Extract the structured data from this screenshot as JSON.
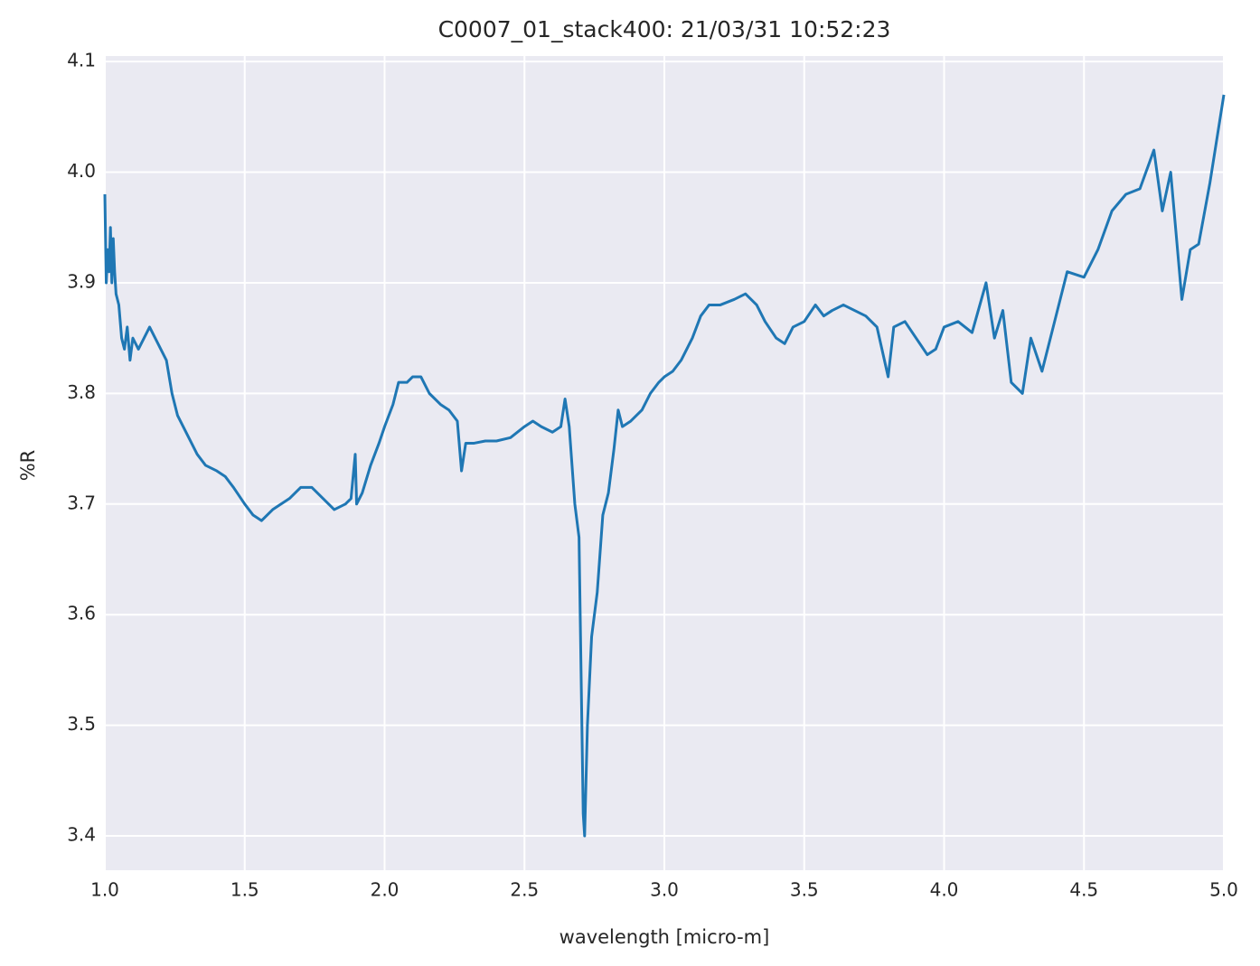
{
  "chart_data": {
    "type": "line",
    "title": "C0007_01_stack400:  21/03/31 10:52:23",
    "x_label": "wavelength [micro-m]",
    "y_label": "%R",
    "xlim": [
      1,
      5
    ],
    "ylim": [
      3.369,
      4.105
    ],
    "xticks": [
      {
        "value": 1,
        "label": "1.0"
      },
      1.5,
      {
        "value": 2,
        "label": "2.0"
      },
      2.5,
      {
        "value": 3,
        "label": "3.0"
      },
      3.5,
      {
        "value": 4,
        "label": "4.0"
      },
      4.5,
      {
        "value": 5,
        "label": "5.0"
      }
    ],
    "yticks": [
      3.4,
      3.5,
      3.6,
      3.7,
      3.8,
      3.9,
      {
        "value": 4,
        "label": "4.0"
      },
      4.1
    ],
    "grid": true,
    "background": "#eaeaf2",
    "x": [
      1.0,
      1.005,
      1.01,
      1.015,
      1.02,
      1.025,
      1.03,
      1.035,
      1.04,
      1.05,
      1.06,
      1.07,
      1.08,
      1.09,
      1.1,
      1.12,
      1.14,
      1.16,
      1.18,
      1.2,
      1.22,
      1.24,
      1.26,
      1.28,
      1.3,
      1.33,
      1.36,
      1.4,
      1.43,
      1.46,
      1.5,
      1.53,
      1.56,
      1.6,
      1.63,
      1.66,
      1.7,
      1.74,
      1.78,
      1.82,
      1.86,
      1.88,
      1.895,
      1.9,
      1.92,
      1.95,
      1.98,
      2.0,
      2.03,
      2.05,
      2.08,
      2.1,
      2.13,
      2.16,
      2.2,
      2.23,
      2.26,
      2.275,
      2.29,
      2.32,
      2.36,
      2.4,
      2.45,
      2.5,
      2.53,
      2.56,
      2.6,
      2.63,
      2.645,
      2.66,
      2.68,
      2.695,
      2.71,
      2.715,
      2.725,
      2.74,
      2.76,
      2.78,
      2.8,
      2.82,
      2.835,
      2.85,
      2.88,
      2.92,
      2.95,
      2.98,
      3.0,
      3.03,
      3.06,
      3.1,
      3.13,
      3.16,
      3.2,
      3.25,
      3.29,
      3.33,
      3.36,
      3.4,
      3.43,
      3.46,
      3.5,
      3.54,
      3.57,
      3.6,
      3.64,
      3.68,
      3.72,
      3.76,
      3.8,
      3.82,
      3.86,
      3.9,
      3.94,
      3.97,
      4.0,
      4.05,
      4.1,
      4.15,
      4.18,
      4.21,
      4.24,
      4.28,
      4.31,
      4.35,
      4.4,
      4.44,
      4.5,
      4.55,
      4.6,
      4.65,
      4.7,
      4.75,
      4.78,
      4.81,
      4.85,
      4.88,
      4.91,
      4.95,
      5.0
    ],
    "series": [
      {
        "color": "#1f77b4",
        "values": [
          3.98,
          3.9,
          3.93,
          3.91,
          3.95,
          3.9,
          3.94,
          3.91,
          3.89,
          3.88,
          3.85,
          3.84,
          3.86,
          3.83,
          3.85,
          3.84,
          3.85,
          3.86,
          3.85,
          3.84,
          3.83,
          3.8,
          3.78,
          3.77,
          3.76,
          3.745,
          3.735,
          3.73,
          3.725,
          3.715,
          3.7,
          3.69,
          3.685,
          3.695,
          3.7,
          3.705,
          3.715,
          3.715,
          3.705,
          3.695,
          3.7,
          3.705,
          3.745,
          3.7,
          3.71,
          3.735,
          3.755,
          3.77,
          3.79,
          3.81,
          3.81,
          3.815,
          3.815,
          3.8,
          3.79,
          3.785,
          3.775,
          3.73,
          3.755,
          3.755,
          3.757,
          3.757,
          3.76,
          3.77,
          3.775,
          3.77,
          3.765,
          3.77,
          3.795,
          3.77,
          3.7,
          3.67,
          3.42,
          3.4,
          3.5,
          3.58,
          3.62,
          3.69,
          3.71,
          3.75,
          3.785,
          3.77,
          3.775,
          3.785,
          3.8,
          3.81,
          3.815,
          3.82,
          3.83,
          3.85,
          3.87,
          3.88,
          3.88,
          3.885,
          3.89,
          3.88,
          3.865,
          3.85,
          3.845,
          3.86,
          3.865,
          3.88,
          3.87,
          3.875,
          3.88,
          3.875,
          3.87,
          3.86,
          3.815,
          3.86,
          3.865,
          3.85,
          3.835,
          3.84,
          3.86,
          3.865,
          3.855,
          3.9,
          3.85,
          3.875,
          3.81,
          3.8,
          3.85,
          3.82,
          3.87,
          3.91,
          3.905,
          3.93,
          3.965,
          3.98,
          3.985,
          4.02,
          3.965,
          4.0,
          3.885,
          3.93,
          3.935,
          3.99,
          4.07
        ]
      }
    ]
  }
}
